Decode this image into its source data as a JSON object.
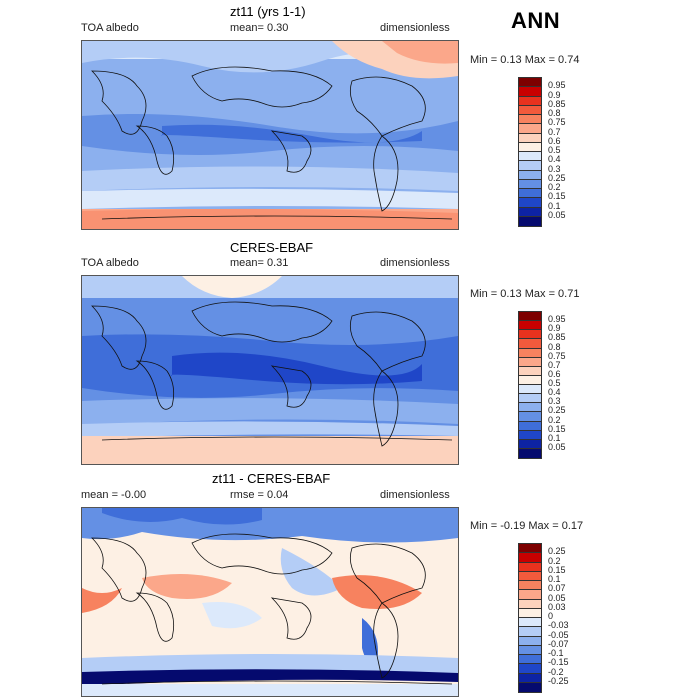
{
  "season": "ANN",
  "panels": [
    {
      "title": "zt11 (yrs 1-1)",
      "left_label": "TOA albedo",
      "mid_label": "mean=    0.30",
      "right_label": "dimensionless",
      "minmax": "Min =    0.13  Max =    0.74",
      "levels": [
        "0.95",
        "0.9",
        "0.85",
        "0.8",
        "0.75",
        "0.7",
        "0.6",
        "0.5",
        "0.4",
        "0.3",
        "0.25",
        "0.2",
        "0.15",
        "0.1",
        "0.05"
      ],
      "colors": [
        "#7d0000",
        "#c80000",
        "#e8321e",
        "#f25a3c",
        "#f7825f",
        "#fba78a",
        "#fcd2bd",
        "#fdf0e4",
        "#dce9fb",
        "#b4cdf6",
        "#8cb0ee",
        "#6490e4",
        "#3f6ed9",
        "#1f46c8",
        "#0d23a4",
        "#050a6e"
      ]
    },
    {
      "title": "CERES-EBAF",
      "left_label": "TOA albedo",
      "mid_label": "mean=    0.31",
      "right_label": "dimensionless",
      "minmax": "Min =    0.13  Max =    0.71",
      "levels": [
        "0.95",
        "0.9",
        "0.85",
        "0.8",
        "0.75",
        "0.7",
        "0.6",
        "0.5",
        "0.4",
        "0.3",
        "0.25",
        "0.2",
        "0.15",
        "0.1",
        "0.05"
      ],
      "colors": [
        "#7d0000",
        "#c80000",
        "#e8321e",
        "#f25a3c",
        "#f7825f",
        "#fba78a",
        "#fcd2bd",
        "#fdf0e4",
        "#dce9fb",
        "#b4cdf6",
        "#8cb0ee",
        "#6490e4",
        "#3f6ed9",
        "#1f46c8",
        "#0d23a4",
        "#050a6e"
      ]
    },
    {
      "title": "zt11 - CERES-EBAF",
      "left_label": "mean =    -0.00",
      "mid_label": "rmse =    0.04",
      "right_label": "dimensionless",
      "minmax": "Min =  -0.19  Max =    0.17",
      "levels": [
        "0.25",
        "0.2",
        "0.15",
        "0.1",
        "0.07",
        "0.05",
        "0.03",
        "0",
        "-0.03",
        "-0.05",
        "-0.07",
        "-0.1",
        "-0.15",
        "-0.2",
        "-0.25"
      ],
      "colors": [
        "#7d0000",
        "#c80000",
        "#e8321e",
        "#f25a3c",
        "#f7825f",
        "#fba78a",
        "#fcd2bd",
        "#fdf0e4",
        "#dce9fb",
        "#b4cdf6",
        "#8cb0ee",
        "#6490e4",
        "#3f6ed9",
        "#1f46c8",
        "#0d23a4",
        "#050a6e"
      ]
    }
  ]
}
